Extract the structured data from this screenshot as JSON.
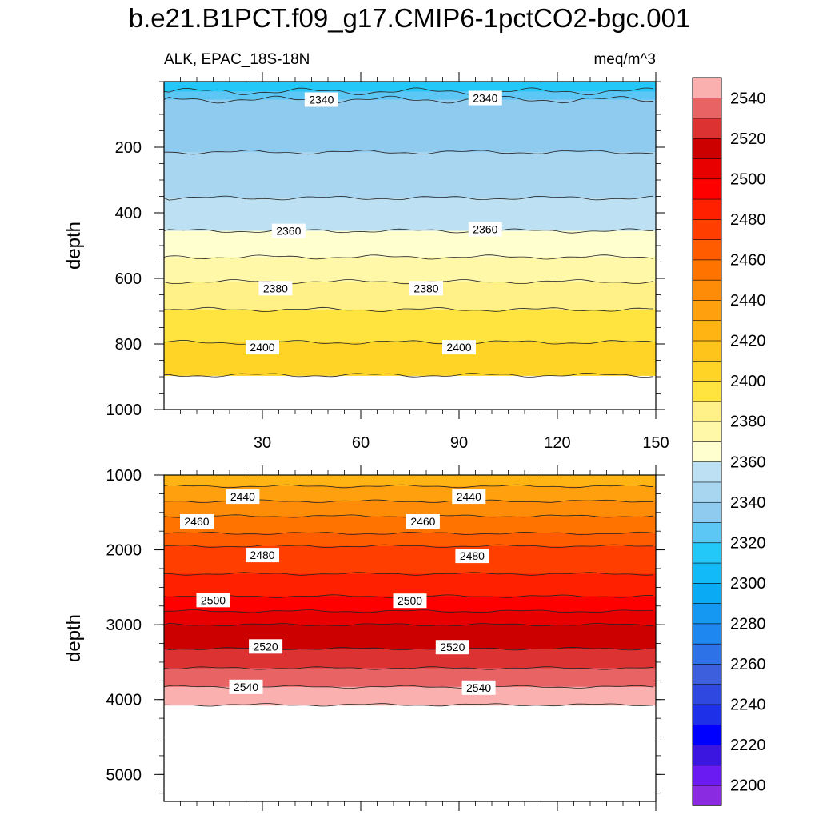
{
  "title": "b.e21.B1PCT.f09_g17.CMIP6-1pctCO2-bgc.001",
  "subtitle_left": "ALK, EPAC_18S-18N",
  "subtitle_right": "meq/m^3",
  "colors": {
    "levels": [
      2200,
      2210,
      2220,
      2230,
      2240,
      2250,
      2260,
      2270,
      2280,
      2290,
      2300,
      2310,
      2320,
      2330,
      2340,
      2350,
      2360,
      2370,
      2380,
      2390,
      2400,
      2410,
      2420,
      2430,
      2440,
      2450,
      2460,
      2470,
      2480,
      2490,
      2500,
      2510,
      2520,
      2530,
      2540,
      2550
    ],
    "fills": [
      "#8a2be2",
      "#6a1bf2",
      "#3a16e0",
      "#0000ff",
      "#1e30e8",
      "#2e48e0",
      "#3d5fdd",
      "#2e72e8",
      "#1e88f0",
      "#1598f2",
      "#0aaaf5",
      "#12bbf7",
      "#24c8f8",
      "#5cc6f5",
      "#8ecbee",
      "#a8d6f0",
      "#bde1f3",
      "#ffffd0",
      "#fff8a8",
      "#fff088",
      "#ffe440",
      "#ffd426",
      "#ffc41c",
      "#ffb414",
      "#ffa00e",
      "#ff8c08",
      "#ff7400",
      "#ff5c00",
      "#ff3e00",
      "#ff2000",
      "#ff0000",
      "#e80000",
      "#cd0000",
      "#dc3232",
      "#e86464",
      "#fbb0b0"
    ]
  },
  "chart_data": [
    {
      "type": "contour",
      "panel": "upper",
      "xlabel": "",
      "ylabel": "depth",
      "xlim": [
        0,
        150
      ],
      "ylim": [
        1000,
        0
      ],
      "yticks": [
        200,
        400,
        600,
        800,
        1000
      ],
      "xticks": [
        30,
        60,
        90,
        120,
        150
      ],
      "band_values": [
        2320,
        2330,
        2340,
        2350,
        2360,
        2370,
        2380,
        2390,
        2400,
        2410
      ],
      "band_boundaries": [
        30,
        55,
        215,
        355,
        455,
        535,
        610,
        695,
        795,
        895
      ],
      "contour_labels": [
        {
          "text": "2340",
          "x": 48,
          "y": 55
        },
        {
          "text": "2340",
          "x": 98,
          "y": 50
        },
        {
          "text": "2360",
          "x": 38,
          "y": 455
        },
        {
          "text": "2360",
          "x": 98,
          "y": 450
        },
        {
          "text": "2380",
          "x": 34,
          "y": 630
        },
        {
          "text": "2380",
          "x": 80,
          "y": 630
        },
        {
          "text": "2400",
          "x": 30,
          "y": 810
        },
        {
          "text": "2400",
          "x": 90,
          "y": 810
        }
      ]
    },
    {
      "type": "contour",
      "panel": "lower",
      "xlabel": "",
      "ylabel": "depth",
      "xlim": [
        0,
        150
      ],
      "ylim": [
        5360,
        1000
      ],
      "yticks": [
        1000,
        2000,
        3000,
        4000,
        5000
      ],
      "band_values": [
        2430,
        2440,
        2450,
        2460,
        2470,
        2480,
        2490,
        2500,
        2510,
        2520,
        2530,
        2540,
        2550
      ],
      "band_boundaries": [
        1150,
        1350,
        1550,
        1780,
        1950,
        2320,
        2620,
        2820,
        3000,
        3320,
        3580,
        3830,
        4070
      ],
      "contour_labels": [
        {
          "text": "2440",
          "x": 24,
          "y": 1290
        },
        {
          "text": "2440",
          "x": 93,
          "y": 1290
        },
        {
          "text": "2460",
          "x": 10,
          "y": 1620
        },
        {
          "text": "2460",
          "x": 79,
          "y": 1620
        },
        {
          "text": "2480",
          "x": 30,
          "y": 2070
        },
        {
          "text": "2480",
          "x": 94,
          "y": 2080
        },
        {
          "text": "2500",
          "x": 15,
          "y": 2670
        },
        {
          "text": "2500",
          "x": 75,
          "y": 2680
        },
        {
          "text": "2520",
          "x": 31,
          "y": 3290
        },
        {
          "text": "2520",
          "x": 88,
          "y": 3300
        },
        {
          "text": "2540",
          "x": 25,
          "y": 3830
        },
        {
          "text": "2540",
          "x": 96,
          "y": 3840
        }
      ]
    }
  ],
  "colorbar_labels": [
    "2200",
    "2220",
    "2240",
    "2260",
    "2280",
    "2300",
    "2320",
    "2340",
    "2360",
    "2380",
    "2400",
    "2420",
    "2440",
    "2460",
    "2480",
    "2500",
    "2520",
    "2540"
  ]
}
